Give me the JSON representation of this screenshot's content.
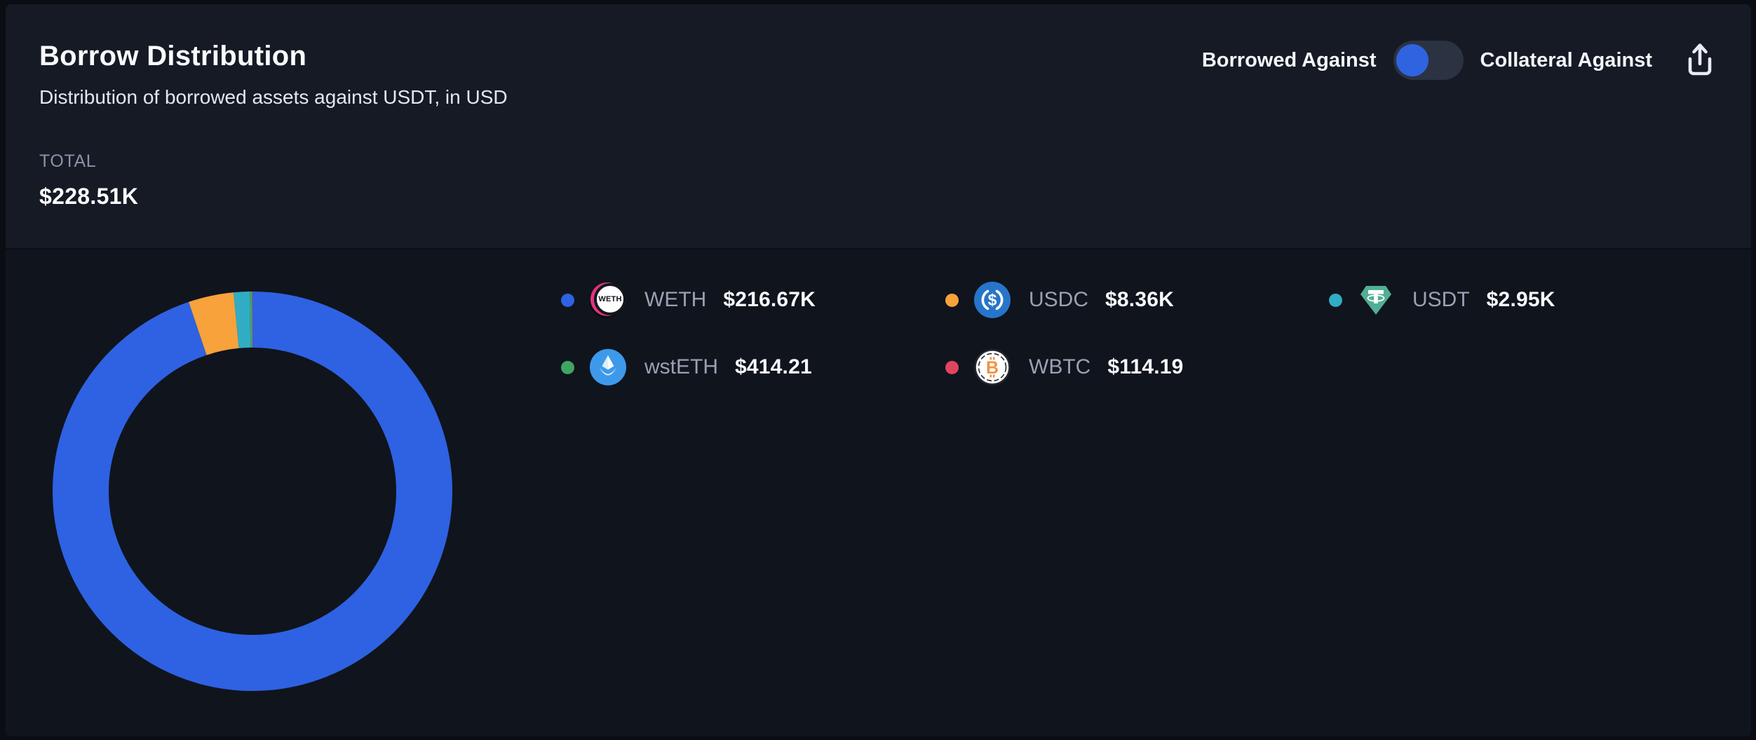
{
  "card": {
    "title": "Borrow Distribution",
    "subtitle": "Distribution of borrowed assets against USDT, in USD",
    "total_label": "TOTAL",
    "total_value": "$228.51K"
  },
  "controls": {
    "toggle_left_label": "Borrowed Against",
    "toggle_right_label": "Collateral Against",
    "toggle_state": "left",
    "export_icon": "share-export-icon"
  },
  "colors": {
    "page_bg": "#0A0D13",
    "header_bg": "#151A25",
    "body_bg": "#10141D",
    "toggle_track": "#2B3342",
    "toggle_knob": "#2F63E0"
  },
  "chart_data": {
    "type": "pie",
    "donut": true,
    "title": "Borrow Distribution",
    "units": "USD",
    "total_display": "$228.51K",
    "legend_position": "right",
    "series": [
      {
        "name": "WETH",
        "value": 216670.0,
        "display": "$216.67K",
        "color": "#2E62E2",
        "icon": "weth-coin-icon"
      },
      {
        "name": "USDC",
        "value": 8360.0,
        "display": "$8.36K",
        "color": "#F7A23B",
        "icon": "usdc-coin-icon"
      },
      {
        "name": "USDT",
        "value": 2950.0,
        "display": "$2.95K",
        "color": "#30ADC4",
        "icon": "usdt-coin-icon"
      },
      {
        "name": "wstETH",
        "value": 414.21,
        "display": "$414.21",
        "color": "#3FA564",
        "icon": "wsteth-coin-icon"
      },
      {
        "name": "WBTC",
        "value": 114.19,
        "display": "$114.19",
        "color": "#E0455F",
        "icon": "wbtc-coin-icon"
      }
    ]
  },
  "icon_text": {
    "weth": "WETH",
    "usdc_symbol": "$",
    "wbtc_symbol": "B"
  }
}
